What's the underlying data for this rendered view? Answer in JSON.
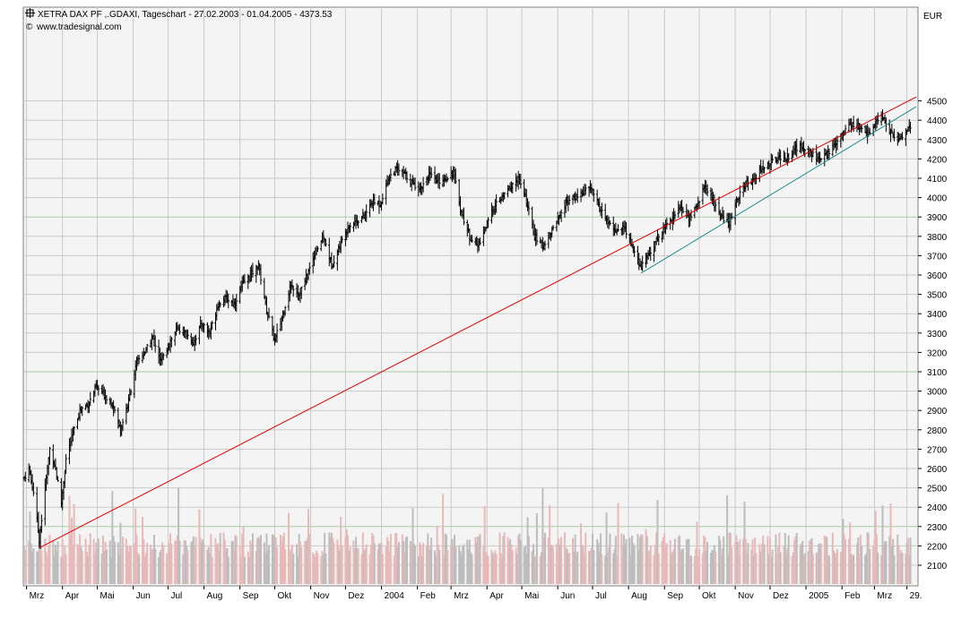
{
  "header": {
    "title": "XETRA DAX PF ,.GDAXI, Tageschart - 27.02.2003 - 01.04.2005 - 4373.53",
    "credit": "www.tradesignal.com",
    "unit": "EUR"
  },
  "colors": {
    "background": "#ffffff",
    "plot_background": "#f4f4f4",
    "grid_minor": "#c9c9c9",
    "grid_major": "#a9c9a9",
    "price_bars": "#000000",
    "volume_up": "#e8b9b9",
    "volume_down": "#bdbdbd",
    "trendline_long": "#e00000",
    "trendline_short": "#1a8c8c"
  },
  "chart_data": {
    "type": "bar",
    "subtype": "ohlc-daily-with-volume",
    "title": "XETRA DAX PF ,.GDAXI, Tageschart - 27.02.2003 - 01.04.2005 - 4373.53",
    "ylabel": "EUR",
    "ylim": [
      2040,
      4560
    ],
    "y_ticks": [
      2100,
      2200,
      2300,
      2400,
      2500,
      2600,
      2700,
      2800,
      2900,
      3000,
      3100,
      3200,
      3300,
      3400,
      3500,
      3600,
      3700,
      3800,
      3900,
      4000,
      4100,
      4200,
      4300,
      4400,
      4500
    ],
    "x_range": [
      "2003-02-27",
      "2005-04-06"
    ],
    "x_ticks": [
      {
        "label": "Mrz",
        "date": "2003-03-01"
      },
      {
        "label": "Apr",
        "date": "2003-04-01"
      },
      {
        "label": "Mai",
        "date": "2003-05-01"
      },
      {
        "label": "Jun",
        "date": "2003-06-01"
      },
      {
        "label": "Jul",
        "date": "2003-07-01"
      },
      {
        "label": "Aug",
        "date": "2003-08-01"
      },
      {
        "label": "Sep",
        "date": "2003-09-01"
      },
      {
        "label": "Okt",
        "date": "2003-10-01"
      },
      {
        "label": "Nov",
        "date": "2003-11-01"
      },
      {
        "label": "Dez",
        "date": "2003-12-01"
      },
      {
        "label": "2004",
        "date": "2004-01-01"
      },
      {
        "label": "Feb",
        "date": "2004-02-01"
      },
      {
        "label": "Mrz",
        "date": "2004-03-01"
      },
      {
        "label": "Apr",
        "date": "2004-04-01"
      },
      {
        "label": "Mai",
        "date": "2004-05-01"
      },
      {
        "label": "Jun",
        "date": "2004-06-01"
      },
      {
        "label": "Jul",
        "date": "2004-07-01"
      },
      {
        "label": "Aug",
        "date": "2004-08-01"
      },
      {
        "label": "Sep",
        "date": "2004-09-01"
      },
      {
        "label": "Okt",
        "date": "2004-10-01"
      },
      {
        "label": "Nov",
        "date": "2004-11-01"
      },
      {
        "label": "Dez",
        "date": "2004-12-01"
      },
      {
        "label": "2005",
        "date": "2005-01-01"
      },
      {
        "label": "Feb",
        "date": "2005-02-01"
      },
      {
        "label": "Mrz",
        "date": "2005-03-01"
      },
      {
        "label": "29.",
        "date": "2005-03-29"
      }
    ],
    "major_gridlines_y": [
      2300,
      3100,
      3900
    ],
    "price_series": [
      {
        "date": "2003-02-27",
        "close": 2550
      },
      {
        "date": "2003-03-03",
        "close": 2600
      },
      {
        "date": "2003-03-07",
        "close": 2480
      },
      {
        "date": "2003-03-12",
        "close": 2230
      },
      {
        "date": "2003-03-17",
        "close": 2500
      },
      {
        "date": "2003-03-21",
        "close": 2700
      },
      {
        "date": "2003-03-26",
        "close": 2600
      },
      {
        "date": "2003-03-31",
        "close": 2420
      },
      {
        "date": "2003-04-04",
        "close": 2650
      },
      {
        "date": "2003-04-10",
        "close": 2780
      },
      {
        "date": "2003-04-16",
        "close": 2900
      },
      {
        "date": "2003-04-24",
        "close": 2940
      },
      {
        "date": "2003-04-30",
        "close": 3020
      },
      {
        "date": "2003-05-07",
        "close": 2980
      },
      {
        "date": "2003-05-14",
        "close": 2940
      },
      {
        "date": "2003-05-21",
        "close": 2800
      },
      {
        "date": "2003-05-28",
        "close": 2950
      },
      {
        "date": "2003-06-04",
        "close": 3150
      },
      {
        "date": "2003-06-11",
        "close": 3200
      },
      {
        "date": "2003-06-18",
        "close": 3280
      },
      {
        "date": "2003-06-25",
        "close": 3150
      },
      {
        "date": "2003-07-02",
        "close": 3250
      },
      {
        "date": "2003-07-09",
        "close": 3320
      },
      {
        "date": "2003-07-16",
        "close": 3300
      },
      {
        "date": "2003-07-23",
        "close": 3250
      },
      {
        "date": "2003-07-30",
        "close": 3350
      },
      {
        "date": "2003-08-06",
        "close": 3300
      },
      {
        "date": "2003-08-13",
        "close": 3450
      },
      {
        "date": "2003-08-20",
        "close": 3480
      },
      {
        "date": "2003-08-27",
        "close": 3450
      },
      {
        "date": "2003-09-03",
        "close": 3550
      },
      {
        "date": "2003-09-10",
        "close": 3600
      },
      {
        "date": "2003-09-17",
        "close": 3650
      },
      {
        "date": "2003-09-24",
        "close": 3420
      },
      {
        "date": "2003-10-01",
        "close": 3260
      },
      {
        "date": "2003-10-08",
        "close": 3400
      },
      {
        "date": "2003-10-15",
        "close": 3550
      },
      {
        "date": "2003-10-22",
        "close": 3500
      },
      {
        "date": "2003-10-29",
        "close": 3600
      },
      {
        "date": "2003-11-05",
        "close": 3720
      },
      {
        "date": "2003-11-12",
        "close": 3800
      },
      {
        "date": "2003-11-19",
        "close": 3650
      },
      {
        "date": "2003-11-26",
        "close": 3750
      },
      {
        "date": "2003-12-03",
        "close": 3850
      },
      {
        "date": "2003-12-10",
        "close": 3880
      },
      {
        "date": "2003-12-17",
        "close": 3900
      },
      {
        "date": "2003-12-24",
        "close": 3980
      },
      {
        "date": "2003-12-31",
        "close": 3965
      },
      {
        "date": "2004-01-07",
        "close": 4100
      },
      {
        "date": "2004-01-14",
        "close": 4150
      },
      {
        "date": "2004-01-21",
        "close": 4120
      },
      {
        "date": "2004-01-28",
        "close": 4070
      },
      {
        "date": "2004-02-04",
        "close": 4050
      },
      {
        "date": "2004-02-11",
        "close": 4120
      },
      {
        "date": "2004-02-18",
        "close": 4080
      },
      {
        "date": "2004-02-25",
        "close": 4100
      },
      {
        "date": "2004-03-03",
        "close": 4130
      },
      {
        "date": "2004-03-10",
        "close": 3920
      },
      {
        "date": "2004-03-17",
        "close": 3800
      },
      {
        "date": "2004-03-24",
        "close": 3750
      },
      {
        "date": "2004-03-31",
        "close": 3850
      },
      {
        "date": "2004-04-07",
        "close": 3950
      },
      {
        "date": "2004-04-14",
        "close": 4000
      },
      {
        "date": "2004-04-21",
        "close": 4050
      },
      {
        "date": "2004-04-28",
        "close": 4100
      },
      {
        "date": "2004-05-05",
        "close": 3980
      },
      {
        "date": "2004-05-12",
        "close": 3800
      },
      {
        "date": "2004-05-19",
        "close": 3750
      },
      {
        "date": "2004-05-26",
        "close": 3820
      },
      {
        "date": "2004-06-02",
        "close": 3900
      },
      {
        "date": "2004-06-09",
        "close": 3980
      },
      {
        "date": "2004-06-16",
        "close": 4000
      },
      {
        "date": "2004-06-23",
        "close": 4030
      },
      {
        "date": "2004-06-30",
        "close": 4050
      },
      {
        "date": "2004-07-07",
        "close": 3950
      },
      {
        "date": "2004-07-14",
        "close": 3870
      },
      {
        "date": "2004-07-21",
        "close": 3830
      },
      {
        "date": "2004-07-28",
        "close": 3850
      },
      {
        "date": "2004-08-04",
        "close": 3750
      },
      {
        "date": "2004-08-11",
        "close": 3640
      },
      {
        "date": "2004-08-18",
        "close": 3700
      },
      {
        "date": "2004-08-25",
        "close": 3780
      },
      {
        "date": "2004-09-01",
        "close": 3850
      },
      {
        "date": "2004-09-08",
        "close": 3900
      },
      {
        "date": "2004-09-15",
        "close": 3950
      },
      {
        "date": "2004-09-22",
        "close": 3890
      },
      {
        "date": "2004-09-29",
        "close": 3960
      },
      {
        "date": "2004-10-06",
        "close": 4060
      },
      {
        "date": "2004-10-13",
        "close": 3980
      },
      {
        "date": "2004-10-20",
        "close": 3900
      },
      {
        "date": "2004-10-27",
        "close": 3860
      },
      {
        "date": "2004-11-03",
        "close": 4000
      },
      {
        "date": "2004-11-10",
        "close": 4070
      },
      {
        "date": "2004-11-17",
        "close": 4100
      },
      {
        "date": "2004-11-24",
        "close": 4150
      },
      {
        "date": "2004-12-01",
        "close": 4180
      },
      {
        "date": "2004-12-08",
        "close": 4210
      },
      {
        "date": "2004-12-15",
        "close": 4200
      },
      {
        "date": "2004-12-22",
        "close": 4250
      },
      {
        "date": "2004-12-29",
        "close": 4260
      },
      {
        "date": "2005-01-05",
        "close": 4240
      },
      {
        "date": "2005-01-12",
        "close": 4190
      },
      {
        "date": "2005-01-19",
        "close": 4220
      },
      {
        "date": "2005-01-26",
        "close": 4280
      },
      {
        "date": "2005-02-02",
        "close": 4340
      },
      {
        "date": "2005-02-09",
        "close": 4380
      },
      {
        "date": "2005-02-16",
        "close": 4360
      },
      {
        "date": "2005-02-23",
        "close": 4330
      },
      {
        "date": "2005-03-02",
        "close": 4380
      },
      {
        "date": "2005-03-07",
        "close": 4420
      },
      {
        "date": "2005-03-14",
        "close": 4350
      },
      {
        "date": "2005-03-21",
        "close": 4290
      },
      {
        "date": "2005-03-28",
        "close": 4340
      },
      {
        "date": "2005-04-01",
        "close": 4374
      }
    ],
    "trendlines": [
      {
        "color": "red",
        "from": {
          "date": "2003-03-12",
          "value": 2190
        },
        "to": {
          "date": "2005-04-06",
          "value": 4520
        }
      },
      {
        "color": "teal",
        "from": {
          "date": "2004-08-12",
          "value": 3610
        },
        "to": {
          "date": "2005-04-06",
          "value": 4470
        }
      }
    ]
  }
}
